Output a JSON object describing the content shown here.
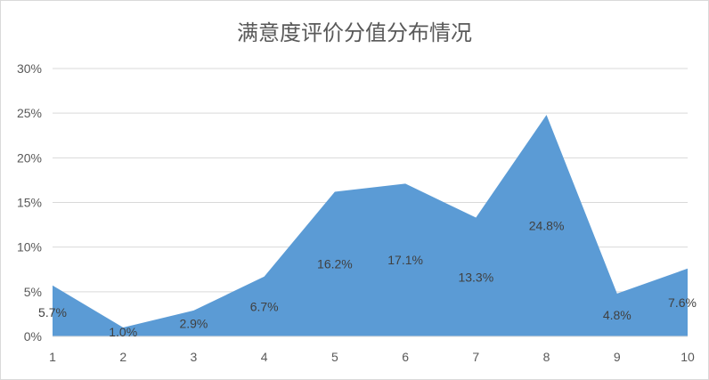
{
  "chart_data": {
    "type": "area",
    "title": "满意度评价分值分布情况",
    "x": [
      "1",
      "2",
      "3",
      "4",
      "5",
      "6",
      "7",
      "8",
      "9",
      "10"
    ],
    "values": [
      5.7,
      1.0,
      2.9,
      6.7,
      16.2,
      17.1,
      13.3,
      24.8,
      4.8,
      7.6
    ],
    "data_labels": [
      "5.7%",
      "1.0%",
      "2.9%",
      "6.7%",
      "16.2%",
      "17.1%",
      "13.3%",
      "24.8%",
      "4.8%",
      "7.6%"
    ],
    "y_ticks": [
      "0%",
      "5%",
      "10%",
      "15%",
      "20%",
      "25%",
      "30%"
    ],
    "ylim": [
      0,
      30
    ],
    "grid": true,
    "legend": "none",
    "colors": {
      "area": "#5b9bd5",
      "grid": "#d9d9d9",
      "text": "#595959"
    }
  }
}
